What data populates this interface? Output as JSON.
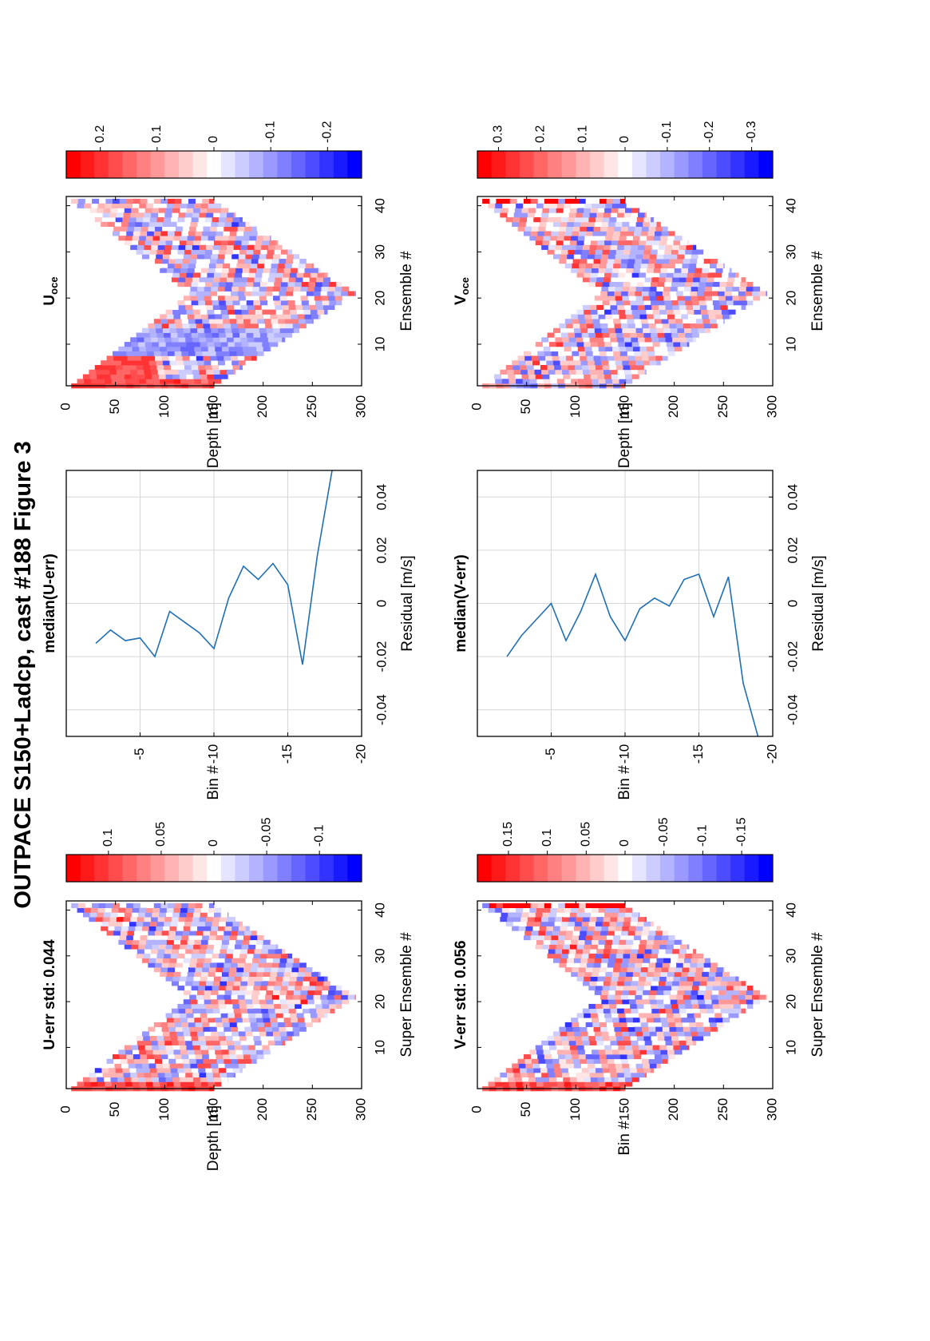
{
  "figure": {
    "title": "OUTPACE S150+Ladcp, cast #188  Figure 3"
  },
  "chart_data": [
    {
      "id": "u_err",
      "type": "heatmap",
      "title": "U-err std: 0.044",
      "xlabel": "Super Ensemble #",
      "ylabel": "Depth [m]",
      "xlim": [
        1,
        42
      ],
      "ylim": [
        0,
        300
      ],
      "xticks": [
        "10",
        "20",
        "30",
        "40"
      ],
      "yticks": [
        "0",
        "50",
        "100",
        "150",
        "200",
        "250",
        "300"
      ],
      "color_limits": [
        -0.14,
        0.14
      ],
      "colorbar_ticks": [
        "0.1",
        "0.05",
        "0",
        "-0.05",
        "-0.1"
      ],
      "seed": 11,
      "warm_start": true
    },
    {
      "id": "v_err",
      "type": "heatmap",
      "title": "V-err std: 0.056",
      "xlabel": "Super Ensemble #",
      "ylabel": "Bin #",
      "xlim": [
        1,
        42
      ],
      "ylim": [
        0,
        300
      ],
      "xticks": [
        "10",
        "20",
        "30",
        "40"
      ],
      "yticks": [
        "0",
        "50",
        "100",
        "150",
        "200",
        "250",
        "300"
      ],
      "color_limits": [
        -0.19,
        0.19
      ],
      "colorbar_ticks": [
        "0.15",
        "0.1",
        "0.05",
        "0",
        "-0.05",
        "-0.1",
        "-0.15"
      ],
      "seed": 23,
      "warm_start": true
    },
    {
      "id": "median_u",
      "type": "line",
      "title": "median(U-err)",
      "xlabel": "Residual [m/s]",
      "ylabel": "Bin #",
      "xlim": [
        -0.05,
        0.05
      ],
      "ylim": [
        0,
        -20
      ],
      "xticks": [
        "-0.04",
        "-0.02",
        "0",
        "0.02",
        "0.04"
      ],
      "yticks": [
        "-5",
        "-10",
        "-15",
        "-20"
      ],
      "grid": true,
      "series": [
        {
          "x": [
            -0.015,
            -0.01,
            -0.014,
            -0.013,
            -0.02,
            -0.003,
            -0.007,
            -0.011,
            -0.017,
            0.002,
            0.014,
            0.009,
            0.015,
            0.007,
            -0.023,
            0.018,
            0.05
          ],
          "y": [
            -2,
            -3,
            -4,
            -5,
            -6,
            -7,
            -8,
            -9,
            -10,
            -11,
            -12,
            -13,
            -14,
            -15,
            -16,
            -17,
            -18
          ]
        }
      ]
    },
    {
      "id": "median_v",
      "type": "line",
      "title": "median(V-err)",
      "xlabel": "Residual [m/s]",
      "ylabel": "Bin #",
      "xlim": [
        -0.05,
        0.05
      ],
      "ylim": [
        0,
        -20
      ],
      "xticks": [
        "-0.04",
        "-0.02",
        "0",
        "0.02",
        "0.04"
      ],
      "yticks": [
        "-5",
        "-10",
        "-15",
        "-20"
      ],
      "grid": true,
      "series": [
        {
          "x": [
            -0.02,
            -0.012,
            -0.006,
            0.0,
            -0.014,
            -0.003,
            0.011,
            -0.005,
            -0.014,
            -0.002,
            0.002,
            -0.001,
            0.009,
            0.011,
            -0.005,
            0.01,
            -0.03,
            -0.05
          ],
          "y": [
            -2,
            -3,
            -4,
            -5,
            -6,
            -7,
            -8,
            -9,
            -10,
            -11,
            -12,
            -13,
            -14,
            -15,
            -16,
            -17,
            -18,
            -19
          ]
        }
      ]
    },
    {
      "id": "u_oce",
      "type": "heatmap",
      "title": "U",
      "title_subscript": "oce",
      "xlabel": "Ensemble #",
      "ylabel": "Depth [m]",
      "xlim": [
        1,
        42
      ],
      "ylim": [
        0,
        300
      ],
      "xticks": [
        "10",
        "20",
        "30",
        "40"
      ],
      "yticks": [
        "0",
        "50",
        "100",
        "150",
        "200",
        "250",
        "300"
      ],
      "color_limits": [
        -0.26,
        0.26
      ],
      "colorbar_ticks": [
        "0.2",
        "0.1",
        "0",
        "-0.1",
        "-0.2"
      ],
      "seed": 37,
      "warm_start": true
    },
    {
      "id": "v_oce",
      "type": "heatmap",
      "title": "V",
      "title_subscript": "oce",
      "xlabel": "Ensemble #",
      "ylabel": "Depth [m]",
      "xlim": [
        1,
        42
      ],
      "ylim": [
        0,
        300
      ],
      "xticks": [
        "10",
        "20",
        "30",
        "40"
      ],
      "yticks": [
        "0",
        "50",
        "100",
        "150",
        "200",
        "250",
        "300"
      ],
      "color_limits": [
        -0.35,
        0.35
      ],
      "colorbar_ticks": [
        "0.3",
        "0.2",
        "0.1",
        "0",
        "-0.1",
        "-0.2",
        "-0.3"
      ],
      "seed": 53,
      "warm_start": false
    }
  ]
}
